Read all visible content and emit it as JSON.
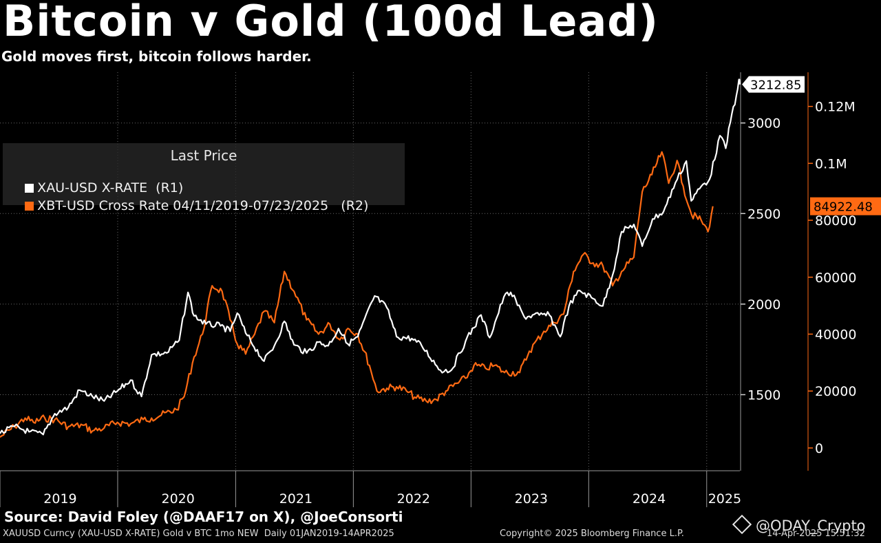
{
  "header": {
    "title": "Bitcoin v Gold (100d Lead)",
    "subtitle": "Gold moves first, bitcoin follows harder."
  },
  "legend": {
    "title": "Last Price",
    "items": [
      {
        "label": "XAU-USD X-RATE  (R1)",
        "color": "#ffffff"
      },
      {
        "label": "XBT-USD Cross Rate 04/11/2019-07/23/2025   (R2)",
        "color": "#ff6a13"
      }
    ]
  },
  "footer": {
    "source": "Source: David Foley (@DAAF17 on X), @JoeConsorti",
    "security": "XAUUSD Curncy (XAU-USD X-RATE) Gold v BTC 1mo NEW  Daily 01JAN2019-14APR2025",
    "copyright": "Copyright© 2025 Bloomberg Finance L.P.",
    "date": "14-Apr-2025 15:51:32"
  },
  "watermark": {
    "text": "@ODAY_Crypto",
    "icon": "binance-diamond-icon"
  },
  "chart_data": {
    "type": "line",
    "title": "Bitcoin v Gold (100d Lead)",
    "subtitle": "Gold moves first, bitcoin follows harder.",
    "xlabel": "",
    "x_ticks": [
      "2019",
      "2020",
      "2021",
      "2022",
      "2023",
      "2024",
      "2025"
    ],
    "xlim": [
      "2019-01-01",
      "2025-04-14"
    ],
    "grid": true,
    "legend_position": "top-left",
    "axes": {
      "r1": {
        "ticks": [
          1500,
          2000,
          2500,
          3000
        ],
        "tick_labels": [
          "1500",
          "2000",
          "2500",
          "3000"
        ],
        "ylim": [
          1080,
          3280
        ],
        "color": "#ffffff"
      },
      "r2": {
        "ticks": [
          0,
          20000,
          40000,
          60000,
          80000,
          100000,
          120000
        ],
        "tick_labels": [
          "0",
          "20000",
          "40000",
          "60000",
          "80000",
          "0.1M",
          "0.12M"
        ],
        "ylim": [
          -8000,
          132000
        ],
        "color": "#ff6a13"
      }
    },
    "series": [
      {
        "name": "XAU-USD X-RATE  (R1)",
        "axis": "r1",
        "color": "#ffffff",
        "last_value": "3212.85",
        "points": [
          [
            "2019-01-01",
            1285
          ],
          [
            "2019-02-15",
            1325
          ],
          [
            "2019-04-01",
            1295
          ],
          [
            "2019-05-15",
            1280
          ],
          [
            "2019-06-20",
            1395
          ],
          [
            "2019-08-01",
            1430
          ],
          [
            "2019-09-05",
            1525
          ],
          [
            "2019-10-15",
            1490
          ],
          [
            "2019-11-20",
            1465
          ],
          [
            "2019-12-31",
            1520
          ],
          [
            "2020-02-10",
            1580
          ],
          [
            "2020-03-15",
            1490
          ],
          [
            "2020-04-15",
            1720
          ],
          [
            "2020-06-01",
            1730
          ],
          [
            "2020-07-10",
            1800
          ],
          [
            "2020-08-06",
            2065
          ],
          [
            "2020-08-25",
            1935
          ],
          [
            "2020-10-01",
            1890
          ],
          [
            "2020-11-15",
            1880
          ],
          [
            "2020-12-15",
            1850
          ],
          [
            "2021-01-06",
            1950
          ],
          [
            "2021-02-01",
            1840
          ],
          [
            "2021-03-30",
            1685
          ],
          [
            "2021-05-01",
            1770
          ],
          [
            "2021-06-01",
            1905
          ],
          [
            "2021-07-01",
            1775
          ],
          [
            "2021-08-09",
            1730
          ],
          [
            "2021-09-15",
            1790
          ],
          [
            "2021-10-15",
            1770
          ],
          [
            "2021-11-16",
            1865
          ],
          [
            "2021-12-15",
            1780
          ],
          [
            "2022-01-15",
            1820
          ],
          [
            "2022-03-08",
            2045
          ],
          [
            "2022-04-15",
            1980
          ],
          [
            "2022-05-15",
            1820
          ],
          [
            "2022-07-01",
            1810
          ],
          [
            "2022-08-01",
            1770
          ],
          [
            "2022-09-28",
            1635
          ],
          [
            "2022-11-01",
            1635
          ],
          [
            "2022-12-15",
            1795
          ],
          [
            "2023-02-01",
            1940
          ],
          [
            "2023-02-28",
            1815
          ],
          [
            "2023-04-13",
            2040
          ],
          [
            "2023-05-04",
            2065
          ],
          [
            "2023-06-15",
            1930
          ],
          [
            "2023-08-01",
            1940
          ],
          [
            "2023-09-01",
            1940
          ],
          [
            "2023-10-05",
            1820
          ],
          [
            "2023-11-01",
            1990
          ],
          [
            "2023-12-04",
            2075
          ],
          [
            "2024-01-15",
            2030
          ],
          [
            "2024-02-14",
            1990
          ],
          [
            "2024-03-15",
            2160
          ],
          [
            "2024-04-12",
            2400
          ],
          [
            "2024-05-20",
            2440
          ],
          [
            "2024-06-15",
            2320
          ],
          [
            "2024-07-17",
            2470
          ],
          [
            "2024-08-20",
            2510
          ],
          [
            "2024-09-26",
            2670
          ],
          [
            "2024-10-30",
            2790
          ],
          [
            "2024-11-14",
            2570
          ],
          [
            "2024-12-15",
            2650
          ],
          [
            "2025-01-10",
            2690
          ],
          [
            "2025-02-11",
            2930
          ],
          [
            "2025-03-01",
            2860
          ],
          [
            "2025-03-20",
            3050
          ],
          [
            "2025-04-03",
            3150
          ],
          [
            "2025-04-11",
            3240
          ],
          [
            "2025-04-14",
            3212.85
          ]
        ]
      },
      {
        "name": "XBT-USD Cross Rate 04/11/2019-07/23/2025   (R2)",
        "axis": "r2",
        "color": "#ff6a13",
        "last_value": "84922.48",
        "points": [
          [
            "2019-01-01",
            3800
          ],
          [
            "2019-02-15",
            7500
          ],
          [
            "2019-03-20",
            10500
          ],
          [
            "2019-04-15",
            9000
          ],
          [
            "2019-05-20",
            10500
          ],
          [
            "2019-06-20",
            10000
          ],
          [
            "2019-08-01",
            7500
          ],
          [
            "2019-09-15",
            8000
          ],
          [
            "2019-10-15",
            6000
          ],
          [
            "2019-11-20",
            7000
          ],
          [
            "2019-12-31",
            9000
          ],
          [
            "2020-02-10",
            8500
          ],
          [
            "2020-03-20",
            10000
          ],
          [
            "2020-04-15",
            10500
          ],
          [
            "2020-05-15",
            11500
          ],
          [
            "2020-07-01",
            13500
          ],
          [
            "2020-07-25",
            18000
          ],
          [
            "2020-08-25",
            32000
          ],
          [
            "2020-09-20",
            40000
          ],
          [
            "2020-10-20",
            57000
          ],
          [
            "2020-11-20",
            55000
          ],
          [
            "2020-12-15",
            45000
          ],
          [
            "2021-01-06",
            36500
          ],
          [
            "2021-02-01",
            33000
          ],
          [
            "2021-03-01",
            40000
          ],
          [
            "2021-03-30",
            48000
          ],
          [
            "2021-05-01",
            44000
          ],
          [
            "2021-06-01",
            62000
          ],
          [
            "2021-07-01",
            55000
          ],
          [
            "2021-08-09",
            45000
          ],
          [
            "2021-09-15",
            40000
          ],
          [
            "2021-10-20",
            43500
          ],
          [
            "2021-11-20",
            38000
          ],
          [
            "2021-12-15",
            42000
          ],
          [
            "2022-01-15",
            40000
          ],
          [
            "2022-02-20",
            29000
          ],
          [
            "2022-03-15",
            20000
          ],
          [
            "2022-04-15",
            21000
          ],
          [
            "2022-05-15",
            21500
          ],
          [
            "2022-06-15",
            20000
          ],
          [
            "2022-07-15",
            17500
          ],
          [
            "2022-08-15",
            16500
          ],
          [
            "2022-09-15",
            17000
          ],
          [
            "2022-10-15",
            20000
          ],
          [
            "2022-12-15",
            24500
          ],
          [
            "2023-01-10",
            29000
          ],
          [
            "2023-02-15",
            28000
          ],
          [
            "2023-03-15",
            29000
          ],
          [
            "2023-04-15",
            26500
          ],
          [
            "2023-06-01",
            26500
          ],
          [
            "2023-07-01",
            34000
          ],
          [
            "2023-08-15",
            41000
          ],
          [
            "2023-09-15",
            44000
          ],
          [
            "2023-10-15",
            47000
          ],
          [
            "2023-11-15",
            62000
          ],
          [
            "2023-12-15",
            68000
          ],
          [
            "2024-01-15",
            65000
          ],
          [
            "2024-02-14",
            64000
          ],
          [
            "2024-03-15",
            57000
          ],
          [
            "2024-04-12",
            62000
          ],
          [
            "2024-05-20",
            67000
          ],
          [
            "2024-06-15",
            90000
          ],
          [
            "2024-07-15",
            96000
          ],
          [
            "2024-08-15",
            104000
          ],
          [
            "2024-09-05",
            93000
          ],
          [
            "2024-10-01",
            101000
          ],
          [
            "2024-10-20",
            92000
          ],
          [
            "2024-11-15",
            82000
          ],
          [
            "2024-12-15",
            80000
          ],
          [
            "2025-01-05",
            76000
          ],
          [
            "2025-01-20",
            84922.48
          ]
        ]
      }
    ]
  }
}
